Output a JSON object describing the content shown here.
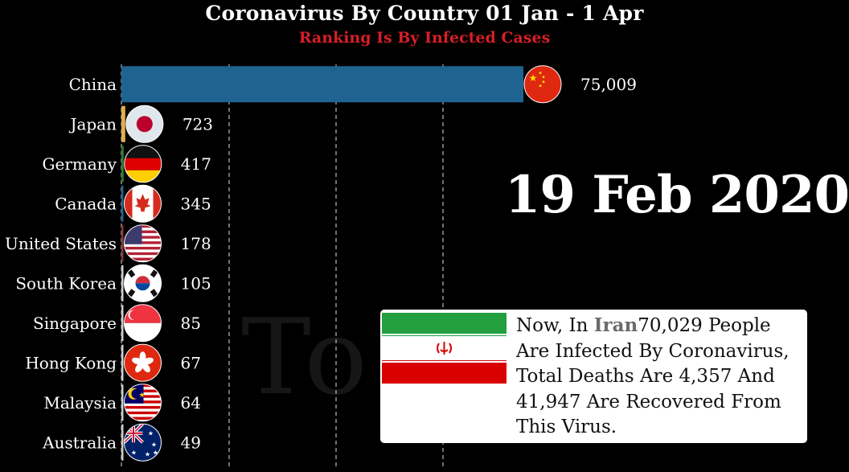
{
  "header": {
    "title": "Coronavirus By Country 01 Jan - 1 Apr",
    "subtitle": "Ranking Is By Infected Cases"
  },
  "current_date": "19 Feb 2020",
  "background_text": "To 3",
  "colors": {
    "background": "#000000",
    "subtitle": "#d61f26",
    "china_bar": "#1f6391",
    "japan_bar": "#e2ad4b",
    "germany_bar": "#2e7d32",
    "canada_bar": "#1f6391",
    "us_bar": "#8b3a3a"
  },
  "info_card": {
    "prefix": "Now, In ",
    "country": "Iran",
    "text": "70,029 People Are Infected By Coronavirus, Total Deaths Are 4,357 And 41,947 Are Recovered From This Virus.",
    "flag_icon": "iran-flag-icon"
  },
  "chart_data": {
    "type": "bar",
    "orientation": "horizontal",
    "title": "Coronavirus By Country 01 Jan - 1 Apr",
    "subtitle": "Ranking Is By Infected Cases",
    "categories": [
      "China",
      "Japan",
      "Germany",
      "Canada",
      "United States",
      "South Korea",
      "Singapore",
      "Hong Kong",
      "Malaysia",
      "Australia"
    ],
    "values": [
      75009,
      723,
      417,
      345,
      178,
      105,
      85,
      67,
      64,
      49
    ],
    "value_labels": [
      "75,009",
      "723",
      "417",
      "345",
      "178",
      "105",
      "85",
      "67",
      "64",
      "49"
    ],
    "flags": [
      "china-flag-icon",
      "japan-flag-icon",
      "germany-flag-icon",
      "canada-flag-icon",
      "usa-flag-icon",
      "south-korea-flag-icon",
      "singapore-flag-icon",
      "hong-kong-flag-icon",
      "malaysia-flag-icon",
      "australia-flag-icon"
    ],
    "bar_colors": [
      "#1f6391",
      "#e2ad4b",
      "#2e7d32",
      "#1f6391",
      "#8b3a3a",
      "#cccccc",
      "#cccccc",
      "#cccccc",
      "#cccccc",
      "#cccccc"
    ],
    "xlim": [
      0,
      75009
    ],
    "grid": "vertical-dashed",
    "date": "19 Feb 2020"
  }
}
